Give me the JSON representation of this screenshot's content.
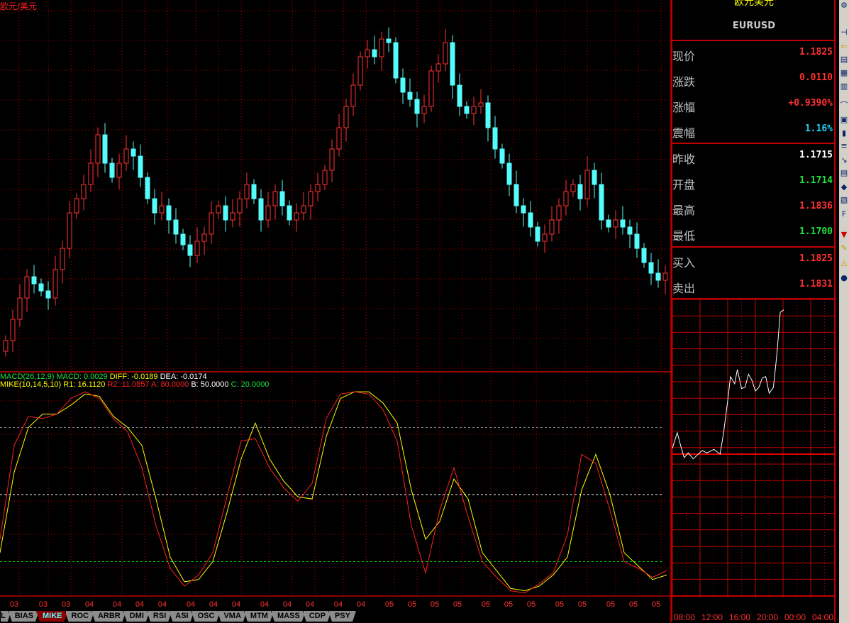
{
  "title": "欧元/美元",
  "colors": {
    "up": "#ff3232",
    "down": "#54fcfc",
    "grid": "#b00000",
    "k_line": "#ffff00",
    "d_line": "#ff2020",
    "level_a": "#808080",
    "level_b": "#ffffff",
    "level_c": "#00d000"
  },
  "indicator_legend": {
    "macd": "MACD(26,12,9)  MACD: 0.0029",
    "diff": "DIFF: -0.0189",
    "dea": "DEA: -0.0174",
    "mike_name": "MIKE(10,14,5,10)",
    "r1": "R1: 16.1120",
    "r2": "R2: 11.0857",
    "a": "A: 80.0000",
    "b": "B: 50.0000",
    "c": "C: 20.0000"
  },
  "x_axis_labels": [
    "03",
    "03",
    "03",
    "04",
    "04",
    "04",
    "04",
    "04",
    "04",
    "04",
    "04",
    "04",
    "04",
    "04",
    "04",
    "05",
    "05",
    "05",
    "05",
    "05",
    "05",
    "05",
    "05",
    "05",
    "05",
    "05",
    "05"
  ],
  "tabs": [
    "L",
    "BIAS",
    "MIKE",
    "ROC",
    "ARBR",
    "DMI",
    "RSI",
    "ASI",
    "OSC",
    "VMA",
    "MTM",
    "MASS",
    "CDP",
    "PSY"
  ],
  "active_tab": "MIKE",
  "chart_data": [
    {
      "type": "candlestick",
      "closes_relative": [
        8,
        14,
        20,
        26,
        24,
        22,
        20,
        28,
        34,
        44,
        48,
        52,
        58,
        66,
        58,
        54,
        58,
        62,
        60,
        54,
        48,
        44,
        46,
        42,
        38,
        35,
        32,
        36,
        38,
        44,
        46,
        42,
        44,
        48,
        52,
        48,
        42,
        46,
        50,
        46,
        42,
        44,
        46,
        50,
        52,
        56,
        62,
        68,
        74,
        80,
        88,
        90,
        88,
        93,
        92,
        82,
        78,
        76,
        72,
        74,
        84,
        86,
        92,
        80,
        74,
        72,
        74,
        75,
        68,
        62,
        58,
        52,
        46,
        44,
        40,
        36,
        38,
        42,
        46,
        50,
        52,
        48,
        56,
        52,
        42,
        40,
        42,
        40,
        38,
        34,
        30,
        27,
        25,
        27
      ]
    },
    {
      "type": "line",
      "indicator": "MIKE",
      "levels": {
        "A": 80,
        "B": 50,
        "C": 20
      },
      "ylim": [
        0,
        100
      ],
      "series": [
        {
          "values": [
            30,
            72,
            85,
            84,
            86,
            93,
            96,
            93,
            84,
            78,
            62,
            36,
            17,
            9,
            14,
            24,
            49,
            74,
            75,
            62,
            53,
            47,
            55,
            84,
            95,
            96,
            95,
            88,
            74,
            36,
            15,
            43,
            62,
            40,
            20,
            13,
            7,
            6,
            10,
            15,
            32,
            68,
            64,
            43,
            20,
            17,
            13,
            16
          ]
        },
        {
          "values": [
            24,
            60,
            80,
            86,
            86,
            90,
            95,
            94,
            85,
            80,
            72,
            48,
            22,
            11,
            12,
            20,
            42,
            66,
            82,
            66,
            56,
            49,
            48,
            76,
            93,
            96,
            96,
            91,
            82,
            52,
            30,
            38,
            57,
            48,
            24,
            16,
            8,
            7,
            9,
            14,
            22,
            52,
            68,
            50,
            24,
            18,
            12,
            14
          ]
        }
      ]
    },
    {
      "type": "line",
      "indicator": "intraday",
      "prev_close": 1.1715,
      "x_tick_labels": [
        "08:00",
        "12:00",
        "16:00",
        "20:00",
        "00:00",
        "04:00"
      ],
      "points": [
        [
          8.0,
          1.172
        ],
        [
          8.7,
          1.1733
        ],
        [
          9.2,
          1.1722
        ],
        [
          9.7,
          1.1712
        ],
        [
          10.3,
          1.1716
        ],
        [
          11.0,
          1.1711
        ],
        [
          12.3,
          1.1718
        ],
        [
          13.0,
          1.1716
        ],
        [
          14.0,
          1.1719
        ],
        [
          14.9,
          1.1715
        ],
        [
          15.4,
          1.1733
        ],
        [
          16.0,
          1.176
        ],
        [
          16.4,
          1.178
        ],
        [
          17.0,
          1.1774
        ],
        [
          17.4,
          1.1786
        ],
        [
          18.0,
          1.177
        ],
        [
          18.5,
          1.1771
        ],
        [
          19.0,
          1.1782
        ],
        [
          19.5,
          1.1777
        ],
        [
          20.0,
          1.1768
        ],
        [
          20.5,
          1.1771
        ],
        [
          21.0,
          1.1779
        ],
        [
          21.5,
          1.178
        ],
        [
          22.0,
          1.1766
        ],
        [
          22.6,
          1.1771
        ],
        [
          23.1,
          1.1798
        ],
        [
          23.6,
          1.1834
        ],
        [
          24.1,
          1.1836
        ]
      ]
    }
  ],
  "quote": {
    "name": "欧元美元",
    "symbol": "EURUSD",
    "rows": [
      {
        "label": "现价",
        "value": "1.1825",
        "color": "#ff3232"
      },
      {
        "label": "涨跌",
        "value": "0.0110",
        "color": "#ff3232"
      },
      {
        "label": "涨幅",
        "value": "+0.9390%",
        "color": "#ff3232"
      },
      {
        "label": "震幅",
        "value": "1.16%",
        "color": "#20d0f0"
      },
      {
        "label": "昨收",
        "value": "1.1715",
        "color": "#ffffff"
      },
      {
        "label": "开盘",
        "value": "1.1714",
        "color": "#20e040"
      },
      {
        "label": "最高",
        "value": "1.1836",
        "color": "#ff3232"
      },
      {
        "label": "最低",
        "value": "1.1700",
        "color": "#20e040"
      },
      {
        "label": "买入",
        "value": "1.1825",
        "color": "#ff3232"
      },
      {
        "label": "卖出",
        "value": "1.1831",
        "color": "#ff3232"
      }
    ]
  },
  "toolbar_icons": [
    "settings-icon",
    "crosshair-icon",
    "back-arrow-icon",
    "table-icon",
    "report-icon",
    "list-icon",
    "line-chart-icon",
    "window-icon",
    "bar-chart-icon",
    "note-icon",
    "trend-icon",
    "data-icon",
    "pin-icon",
    "stats-icon",
    "formula-icon",
    "print-icon",
    "pencil-icon",
    "warning-icon",
    "help-icon"
  ]
}
